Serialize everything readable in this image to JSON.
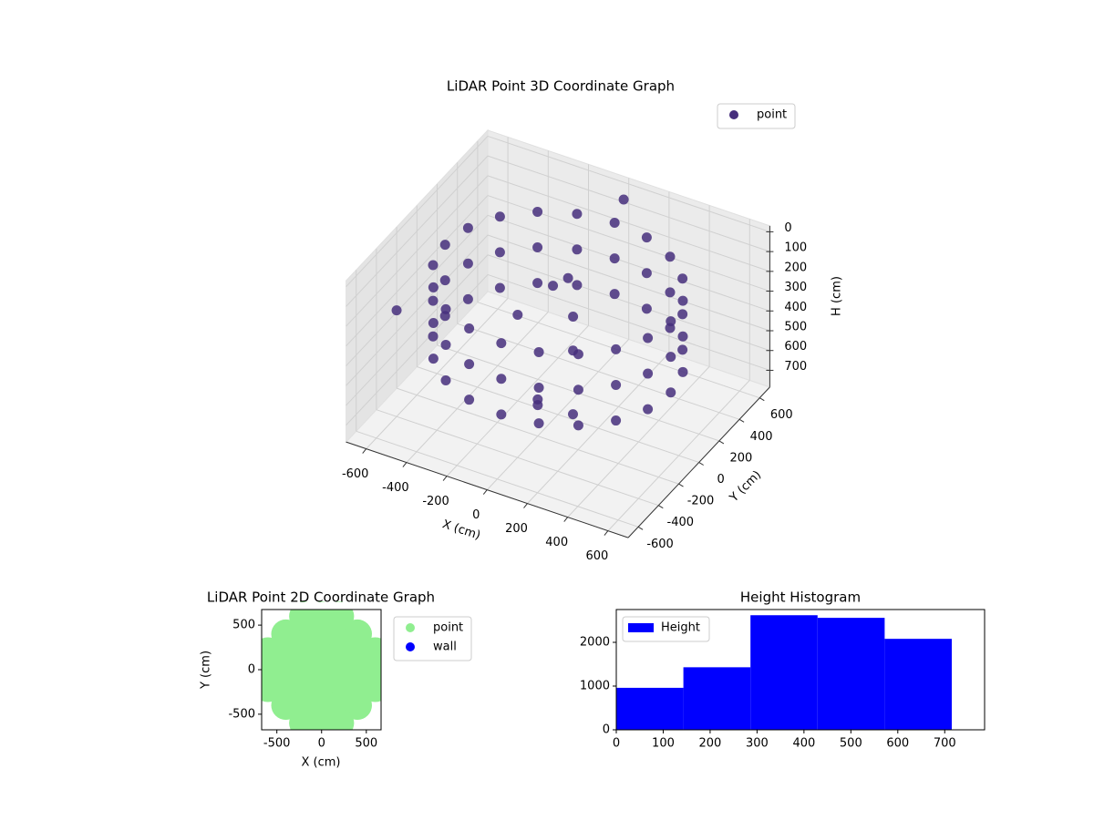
{
  "chart_data": [
    {
      "type": "scatter3d",
      "title": "LiDAR Point 3D Coordinate Graph",
      "xlabel": "X (cm)",
      "ylabel": "Y (cm)",
      "zlabel": "H (cm)",
      "xlim": [
        -700,
        700
      ],
      "ylim": [
        -700,
        700
      ],
      "zlim": [
        -30,
        785
      ],
      "z_inverted": true,
      "xticks": [
        -600,
        -400,
        -200,
        0,
        200,
        400,
        600
      ],
      "yticks": [
        -600,
        -400,
        -200,
        0,
        200,
        400,
        600
      ],
      "zticks": [
        0,
        100,
        200,
        300,
        400,
        500,
        600,
        700
      ],
      "legend": "upper right",
      "series": [
        {
          "name": "point",
          "color": "#472f7d",
          "x": [
            560,
            560,
            560,
            533,
            533,
            533,
            453,
            453,
            453,
            329,
            329,
            329,
            173,
            173,
            173,
            0,
            0,
            0,
            -173,
            -173,
            -173,
            -329,
            -329,
            -329,
            -453,
            -453,
            -453,
            -533,
            -533,
            -533,
            -560,
            -560,
            -560,
            -533,
            -533,
            -533,
            -453,
            -453,
            -453,
            -329,
            -329,
            -329,
            -173,
            -173,
            -173,
            0,
            0,
            0,
            173,
            173,
            173,
            329,
            329,
            329,
            453,
            453,
            453,
            533,
            533,
            533,
            0,
            50,
            -100,
            100,
            -200,
            0,
            150,
            -50,
            -650,
            50
          ],
          "y": [
            0,
            0,
            0,
            173,
            173,
            173,
            329,
            329,
            329,
            453,
            453,
            453,
            533,
            533,
            533,
            560,
            560,
            560,
            533,
            533,
            533,
            453,
            453,
            453,
            329,
            329,
            329,
            173,
            173,
            173,
            0,
            0,
            0,
            -173,
            -173,
            -173,
            -329,
            -329,
            -329,
            -453,
            -453,
            -453,
            -533,
            -533,
            -533,
            -560,
            -560,
            -560,
            -533,
            -533,
            -533,
            -453,
            -453,
            -453,
            -329,
            -329,
            -329,
            -173,
            -173,
            -173,
            100,
            50,
            150,
            -50,
            0,
            -200,
            -150,
            -100,
            -300,
            550
          ],
          "z": [
            120,
            300,
            480,
            120,
            300,
            480,
            120,
            300,
            480,
            120,
            300,
            480,
            120,
            300,
            480,
            120,
            300,
            480,
            120,
            300,
            480,
            120,
            300,
            480,
            120,
            300,
            480,
            120,
            300,
            480,
            120,
            300,
            480,
            120,
            300,
            480,
            120,
            300,
            480,
            120,
            300,
            480,
            120,
            300,
            480,
            120,
            300,
            480,
            120,
            300,
            480,
            120,
            300,
            480,
            120,
            300,
            480,
            120,
            300,
            480,
            150,
            300,
            250,
            400,
            350,
            600,
            650,
            700,
            320,
            -20
          ]
        }
      ]
    },
    {
      "type": "scatter",
      "title": "LiDAR Point 2D Coordinate Graph",
      "xlabel": "X (cm)",
      "ylabel": "Y (cm)",
      "xlim": [
        -670,
        665
      ],
      "ylim": [
        -675,
        675
      ],
      "xticks": [
        -500,
        0,
        500
      ],
      "yticks": [
        -500,
        0,
        500
      ],
      "legend": "outside right",
      "series": [
        {
          "name": "point",
          "color": "#90ee90",
          "x": [
            -600,
            -400,
            -200,
            0,
            200,
            400,
            600,
            -600,
            -400,
            -200,
            0,
            200,
            400,
            600,
            -600,
            -400,
            -200,
            0,
            200,
            400,
            600,
            -400,
            -200,
            0,
            200,
            400,
            -400,
            -200,
            0,
            200,
            400,
            -200,
            0,
            200,
            -200,
            0,
            200
          ],
          "y": [
            0,
            0,
            0,
            0,
            0,
            0,
            0,
            200,
            200,
            200,
            200,
            200,
            200,
            200,
            -200,
            -200,
            -200,
            -200,
            -200,
            -200,
            -200,
            400,
            400,
            400,
            400,
            400,
            -400,
            -400,
            -400,
            -400,
            -400,
            600,
            600,
            600,
            -600,
            -600,
            -600
          ]
        },
        {
          "name": "wall",
          "color": "#0000ff",
          "x": [],
          "y": []
        }
      ]
    },
    {
      "type": "histogram",
      "title": "Height Histogram",
      "bins": [
        0,
        143,
        286,
        429,
        572,
        715
      ],
      "xlim": [
        0,
        785
      ],
      "ylim": [
        0,
        2750
      ],
      "xticks": [
        0,
        100,
        200,
        300,
        400,
        500,
        600,
        700
      ],
      "yticks": [
        0,
        1000,
        2000
      ],
      "legend": "upper left",
      "series": [
        {
          "name": "Height",
          "color": "#0000ff",
          "values": [
            960,
            1430,
            2620,
            2560,
            2080
          ]
        }
      ]
    }
  ]
}
